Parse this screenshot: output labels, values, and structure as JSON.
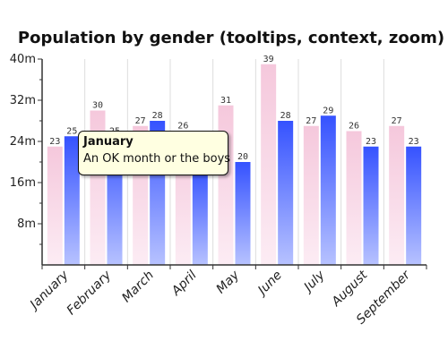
{
  "chart_data": {
    "type": "bar",
    "title": "Population by gender (tooltips, context, zoom)",
    "categories": [
      "January",
      "February",
      "March",
      "April",
      "May",
      "June",
      "July",
      "August",
      "September"
    ],
    "series": [
      {
        "values": [
          23,
          30,
          27,
          26,
          31,
          39,
          27,
          26,
          27
        ]
      },
      {
        "values": [
          25,
          25,
          28,
          19,
          20,
          28,
          29,
          23,
          23
        ]
      }
    ],
    "y_ticks": [
      "40m",
      "32m",
      "24m",
      "16m",
      "8m"
    ],
    "y_tick_values": [
      40,
      32,
      24,
      16,
      8
    ],
    "ylim": [
      0,
      40
    ],
    "grid": "vertical",
    "colors": {
      "series0": "#f5c8dc",
      "series1": "#3f5cff",
      "grid": "#dddddd",
      "axis": "#333333"
    },
    "tooltip": {
      "title": "January",
      "text": "An OK month or the boys"
    }
  }
}
